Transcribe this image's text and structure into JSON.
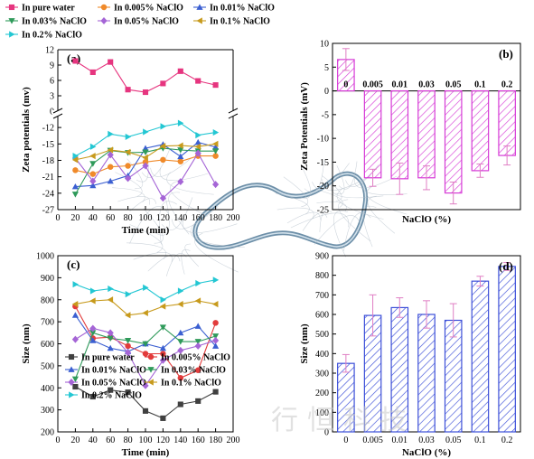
{
  "watermark": "行恒科技",
  "chart_data": [
    {
      "panel": "(a)",
      "type": "line",
      "xlabel": "Time (min)",
      "ylabel": "Zeta potentials (mv)",
      "xlim": [
        0,
        200
      ],
      "xticks": [
        0,
        20,
        40,
        60,
        80,
        100,
        120,
        140,
        160,
        180,
        200
      ],
      "x": [
        20,
        40,
        60,
        80,
        100,
        120,
        140,
        160,
        180
      ],
      "upper_ylim": [
        0,
        12
      ],
      "upper_yticks": [
        0,
        3,
        6,
        9,
        12
      ],
      "lower_ylim": [
        -27,
        -10
      ],
      "lower_yticks": [
        -12,
        -15,
        -18,
        -21,
        -24,
        -27
      ],
      "axis_break": true,
      "legend_position": "top",
      "series": [
        {
          "name": "In pure water",
          "color": "#e6357f",
          "marker": "square",
          "values": [
            9.8,
            7.6,
            9.6,
            4.2,
            3.7,
            5.4,
            7.8,
            5.9,
            5.1
          ]
        },
        {
          "name": "In 0.005% NaClO",
          "color": "#f08a2a",
          "marker": "circle",
          "values": [
            -19.8,
            -20.5,
            -19.2,
            -19.0,
            -18.3,
            -17.9,
            -18.2,
            -17.2,
            -17.2
          ]
        },
        {
          "name": "In 0.01% NaClO",
          "color": "#3b5fd1",
          "marker": "triangle-up",
          "values": [
            -22.8,
            -22.6,
            -21.8,
            -20.8,
            -15.8,
            -15.1,
            -17.3,
            -14.7,
            -15.6
          ]
        },
        {
          "name": "In 0.03% NaClO",
          "color": "#2f9a5a",
          "marker": "triangle-down",
          "values": [
            -24.2,
            -18.6,
            -16.2,
            -16.6,
            -16.5,
            -15.8,
            -16.1,
            -16.3,
            -16.3
          ]
        },
        {
          "name": "In 0.05% NaClO",
          "color": "#a565d6",
          "marker": "diamond",
          "values": [
            -17.6,
            -21.8,
            -17.0,
            -21.3,
            -19.0,
            -24.9,
            -21.9,
            -16.7,
            -22.4
          ]
        },
        {
          "name": "In 0.1% NaClO",
          "color": "#c79a1c",
          "marker": "triangle-left",
          "values": [
            -17.9,
            -17.2,
            -16.1,
            -16.5,
            -17.5,
            -15.4,
            -15.3,
            -15.5,
            -15.0
          ]
        },
        {
          "name": "In 0.2% NaClO",
          "color": "#23c7d3",
          "marker": "triangle-right",
          "values": [
            -17.2,
            -15.5,
            -13.2,
            -13.7,
            -12.8,
            -11.8,
            -11.2,
            -13.4,
            -12.9
          ]
        }
      ]
    },
    {
      "panel": "(b)",
      "type": "bar",
      "xlabel": "NaClO (%)",
      "ylabel": "Zeta Potentials (mV)",
      "ylim": [
        -25,
        10
      ],
      "yticks": [
        10,
        5,
        0,
        -5,
        -10,
        -15,
        -20,
        -25
      ],
      "color": "#d63ad6",
      "categories": [
        "0",
        "0.005",
        "0.01",
        "0.03",
        "0.05",
        "0.1",
        "0.2"
      ],
      "values": [
        6.6,
        -18.3,
        -18.5,
        -18.3,
        -21.5,
        -16.8,
        -13.6
      ],
      "errors": [
        2.3,
        1.8,
        3.3,
        2.5,
        2.3,
        1.4,
        2.0
      ]
    },
    {
      "panel": "(c)",
      "type": "line",
      "xlabel": "Time (min)",
      "ylabel": "Size (nm)",
      "xlim": [
        0,
        200
      ],
      "xticks": [
        0,
        20,
        40,
        60,
        80,
        100,
        120,
        140,
        160,
        180,
        200
      ],
      "ylim": [
        200,
        1000
      ],
      "yticks": [
        200,
        300,
        400,
        500,
        600,
        700,
        800,
        900,
        1000
      ],
      "x": [
        20,
        40,
        60,
        80,
        100,
        120,
        140,
        160,
        180
      ],
      "legend_position": "bottom",
      "series": [
        {
          "name": "In pure water",
          "color": "#404040",
          "marker": "square",
          "values": [
            405,
            360,
            390,
            380,
            295,
            262,
            325,
            340,
            382
          ]
        },
        {
          "name": "In 0.005% NaClO",
          "color": "#e23b3b",
          "marker": "circle",
          "values": [
            770,
            625,
            630,
            590,
            555,
            555,
            445,
            480,
            695
          ]
        },
        {
          "name": "In 0.01% NaClO",
          "color": "#3b5fd1",
          "marker": "triangle-up",
          "values": [
            730,
            615,
            580,
            565,
            600,
            580,
            650,
            680,
            590
          ]
        },
        {
          "name": "In 0.03% NaClO",
          "color": "#2f9a5a",
          "marker": "triangle-down",
          "values": [
            440,
            650,
            625,
            615,
            600,
            675,
            610,
            610,
            635
          ]
        },
        {
          "name": "In 0.05% NaClO",
          "color": "#a565d6",
          "marker": "diamond",
          "values": [
            620,
            670,
            650,
            560,
            410,
            525,
            570,
            590,
            615
          ]
        },
        {
          "name": "In 0.1% NaClO",
          "color": "#c79a1c",
          "marker": "triangle-left",
          "values": [
            780,
            795,
            800,
            730,
            740,
            770,
            780,
            795,
            780
          ]
        },
        {
          "name": "In 0.2% NaClO",
          "color": "#23c7d3",
          "marker": "triangle-right",
          "values": [
            870,
            840,
            850,
            825,
            855,
            800,
            840,
            875,
            890
          ]
        }
      ]
    },
    {
      "panel": "(d)",
      "type": "bar",
      "xlabel": "NaClO (%)",
      "ylabel": "Size (nm)",
      "ylim": [
        0,
        900
      ],
      "yticks": [
        0,
        100,
        200,
        300,
        400,
        500,
        600,
        700,
        800,
        900
      ],
      "color": "#3c4fd8",
      "categories": [
        "0",
        "0.005",
        "0.01",
        "0.03",
        "0.05",
        "0.1",
        "0.2"
      ],
      "values": [
        350,
        595,
        635,
        600,
        570,
        770,
        845
      ],
      "errors": [
        45,
        105,
        50,
        70,
        85,
        25,
        20
      ]
    }
  ]
}
